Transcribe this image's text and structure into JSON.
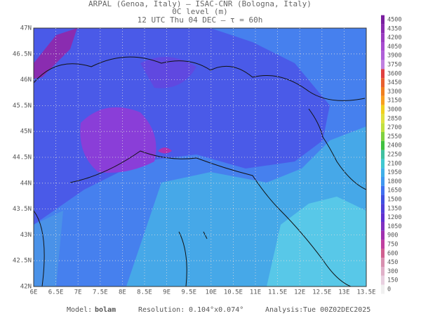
{
  "header": {
    "line1": "ARPAL (Genoa, Italy)  —  ISAC-CNR (Bologna, Italy)",
    "line2": "0C level (m)",
    "line3": "12 UTC Thu 04 DEC  –  τ = 60h"
  },
  "map": {
    "lon_labels": [
      "6E",
      "6.5E",
      "7E",
      "7.5E",
      "8E",
      "8.5E",
      "9E",
      "9.5E",
      "10E",
      "10.5E",
      "11E",
      "11.5E",
      "12E",
      "12.5E",
      "13E",
      "13.5E"
    ],
    "lat_labels": [
      "47N",
      "46.5N",
      "46N",
      "45.5N",
      "45N",
      "44.5N",
      "44N",
      "43.5N",
      "43N",
      "42.5N",
      "42N"
    ]
  },
  "colorbar": {
    "levels": [
      4500,
      4350,
      4200,
      4050,
      3900,
      3750,
      3600,
      3450,
      3300,
      3150,
      3000,
      2850,
      2700,
      2550,
      2400,
      2250,
      2100,
      1950,
      1800,
      1650,
      1500,
      1350,
      1200,
      1050,
      900,
      750,
      600,
      450,
      300,
      150,
      0
    ],
    "colors": [
      "#7a1fa0",
      "#8a2cb0",
      "#9a3cc0",
      "#a84cd0",
      "#b060d8",
      "#c080e0",
      "#e04040",
      "#e86030",
      "#f08020",
      "#f8a020",
      "#f0d020",
      "#e0e040",
      "#c0e040",
      "#80d040",
      "#40c040",
      "#40c0a0",
      "#40c8d0",
      "#40b0e8",
      "#4098f0",
      "#4070f0",
      "#4050e0",
      "#5040d8",
      "#6030d0",
      "#8030c0",
      "#a030b0",
      "#c040a0",
      "#d06090",
      "#d890b0",
      "#e0b0c8",
      "#e8d0e0",
      "#f0f0f0"
    ]
  },
  "footer": {
    "model_label": "Model:",
    "model": "bolam",
    "resolution_label": "Resolution:",
    "resolution": "0.104°x0.074°",
    "analysis_label": "Analysis:",
    "analysis": "Tue 00Z02DEC2025"
  }
}
